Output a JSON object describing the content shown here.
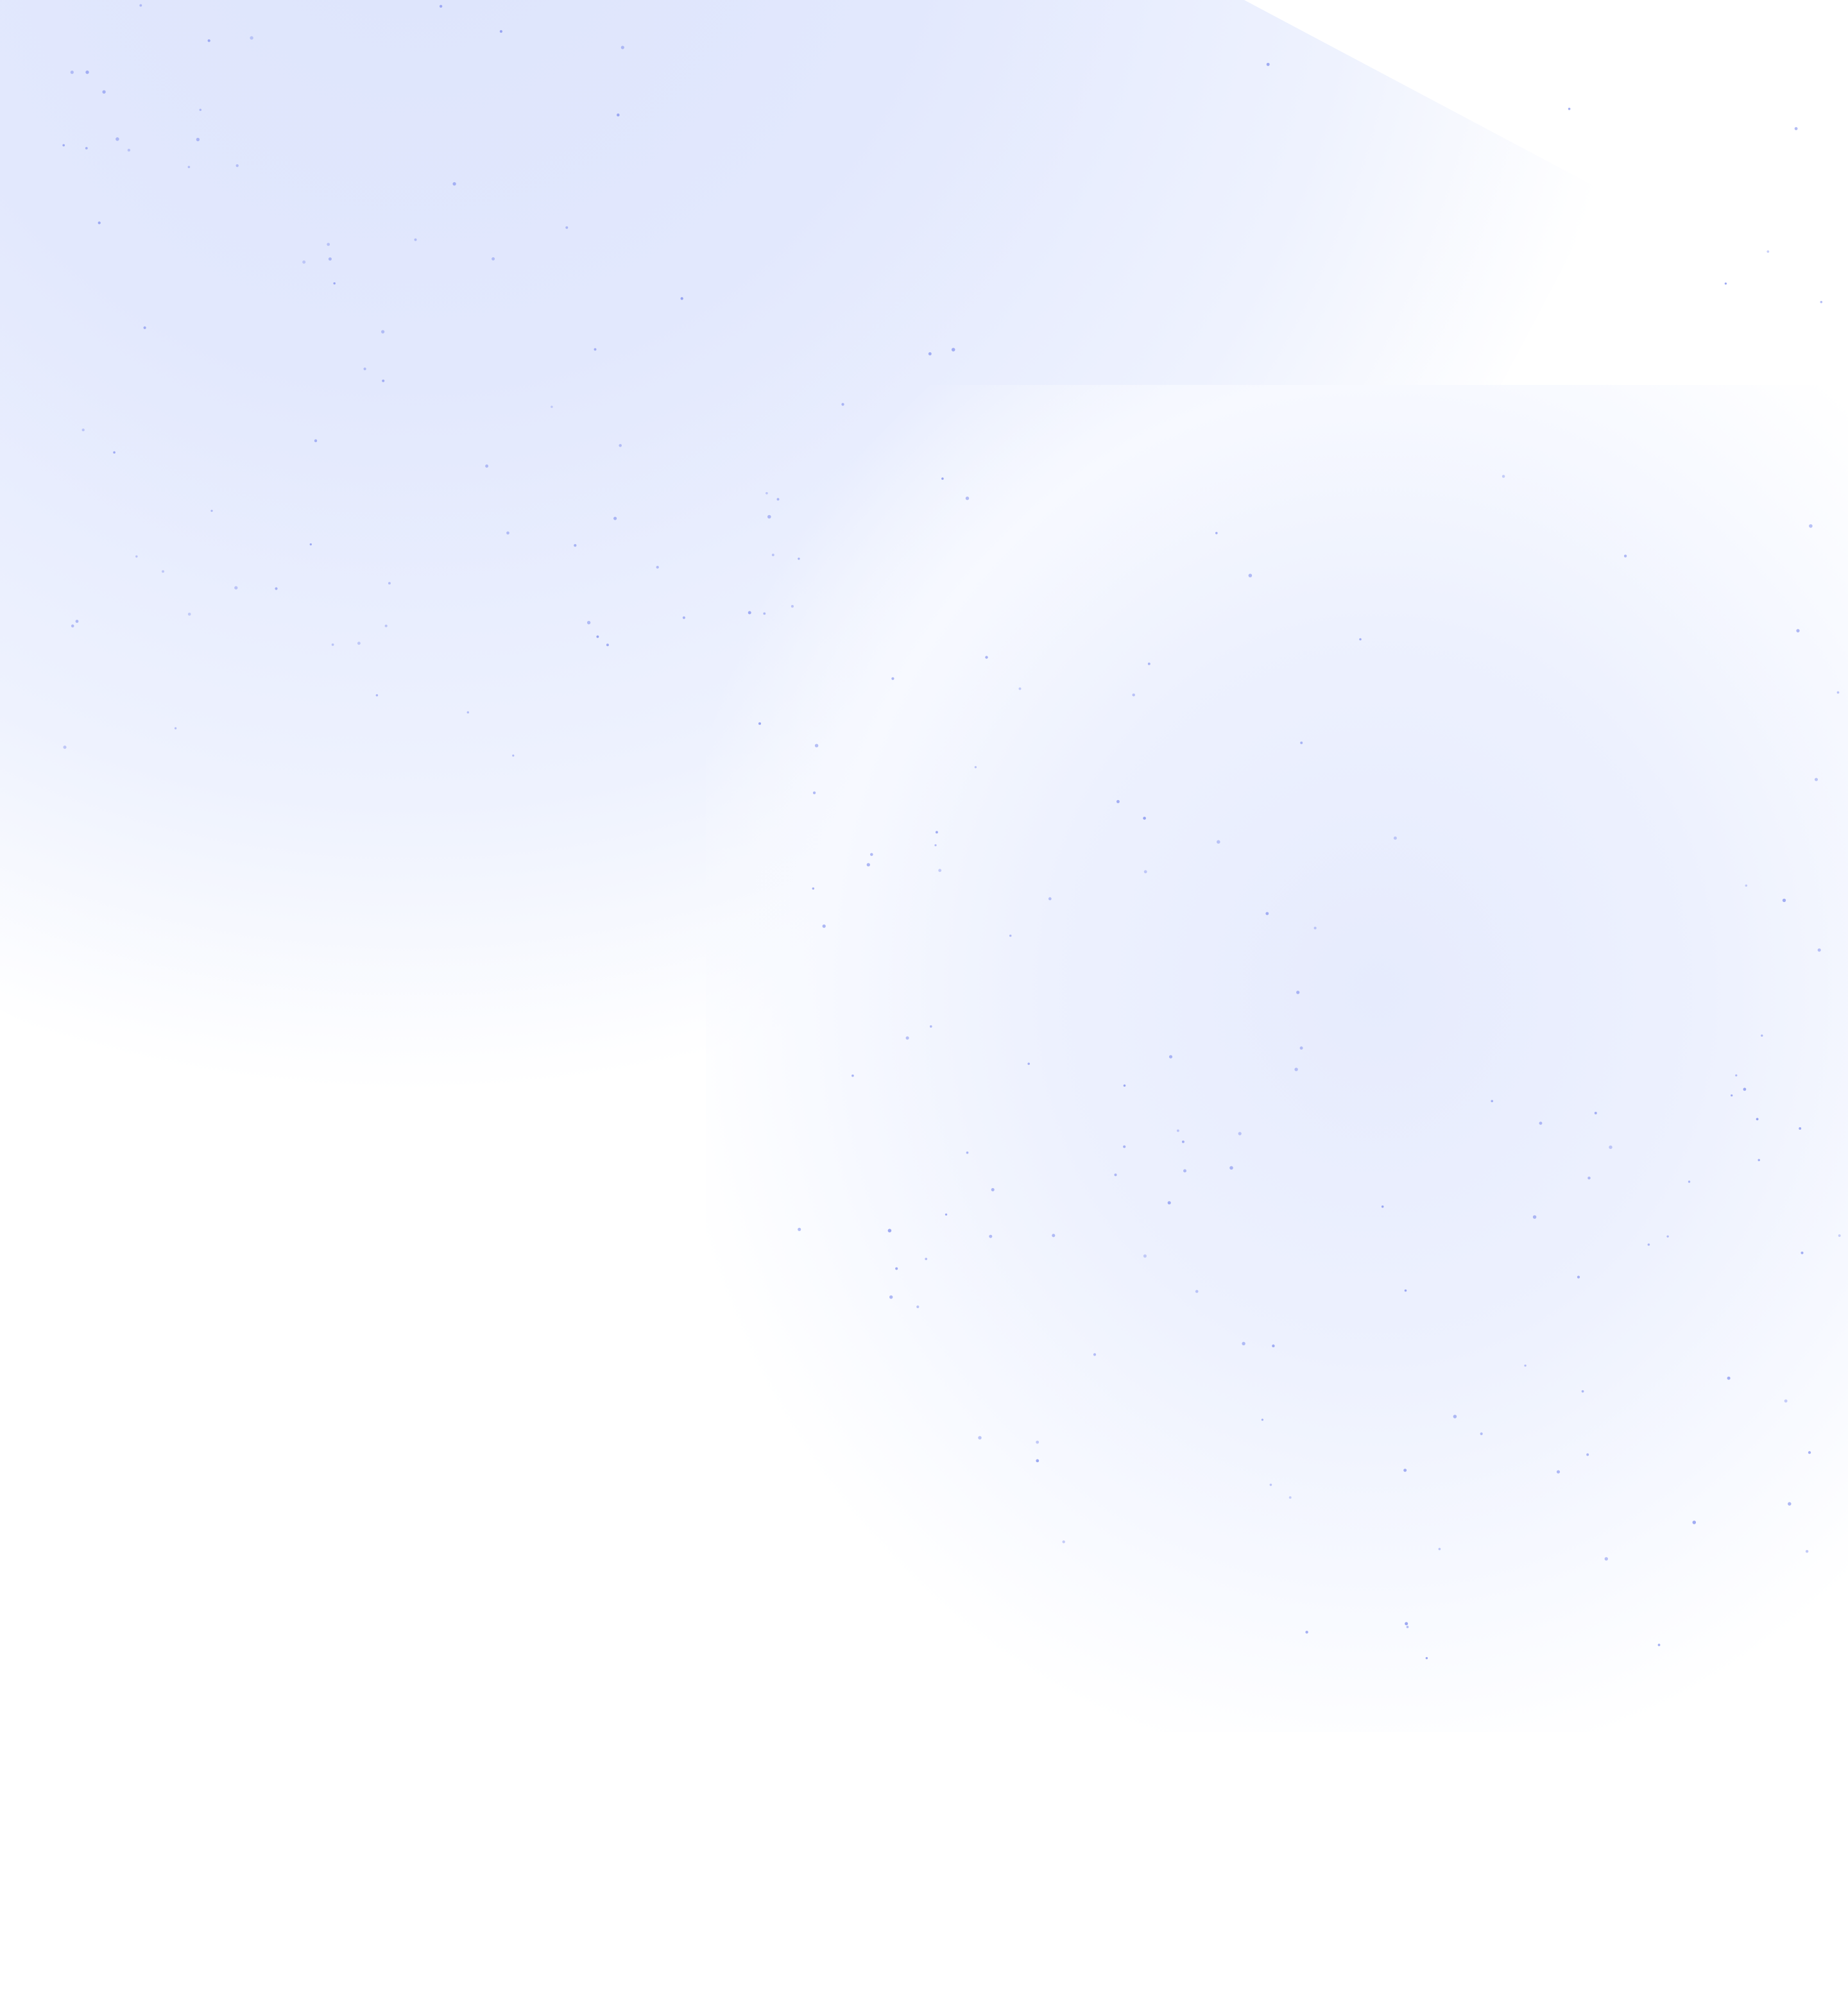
{
  "page": {
    "background": "#ffffff",
    "glow_primary": "#dde4fc",
    "glow_secondary": "#e6ebfd",
    "dot_color": "#8f9cf0"
  }
}
